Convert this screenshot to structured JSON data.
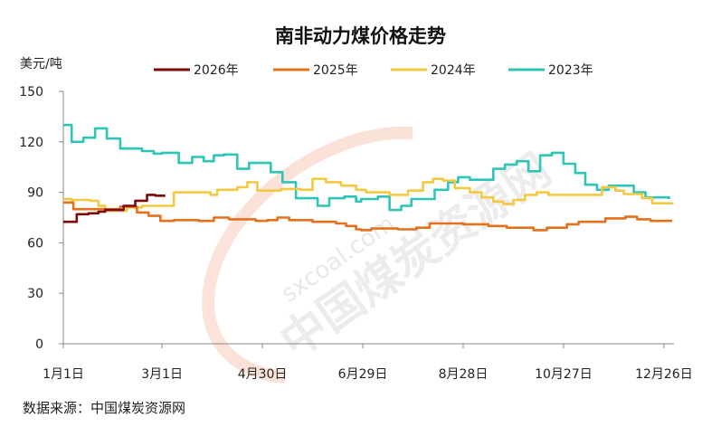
{
  "chart_data": {
    "type": "line",
    "title": "南非动力煤价格走势",
    "ylabel": "美元/吨",
    "ylim": [
      0,
      150
    ],
    "yticks": [
      0,
      30,
      60,
      90,
      120,
      150
    ],
    "xticks": [
      {
        "date": "01-01",
        "label": "1月1日"
      },
      {
        "date": "03-01",
        "label": "3月1日"
      },
      {
        "date": "04-30",
        "label": "4月30日"
      },
      {
        "date": "06-29",
        "label": "6月29日"
      },
      {
        "date": "08-28",
        "label": "8月28日"
      },
      {
        "date": "10-27",
        "label": "10月27日"
      },
      {
        "date": "12-26",
        "label": "12月26日"
      }
    ],
    "grid": false,
    "legend": "top",
    "step": true,
    "series": [
      {
        "name": "2026年",
        "color": "#7b0a0a",
        "points": [
          [
            "01-01",
            72.5
          ],
          [
            "01-09",
            77
          ],
          [
            "01-16",
            77.5
          ],
          [
            "01-22",
            78.5
          ],
          [
            "01-26",
            79.5
          ],
          [
            "02-06",
            82
          ],
          [
            "02-13",
            85
          ],
          [
            "02-20",
            88.5
          ],
          [
            "02-25",
            88
          ],
          [
            "03-03",
            88
          ]
        ]
      },
      {
        "name": "2025年",
        "color": "#e5711d",
        "points": [
          [
            "01-01",
            84
          ],
          [
            "01-07",
            80
          ],
          [
            "02-04",
            81.5
          ],
          [
            "02-14",
            78
          ],
          [
            "02-21",
            76
          ],
          [
            "02-28",
            73
          ],
          [
            "03-08",
            73.5
          ],
          [
            "03-23",
            73
          ],
          [
            "04-01",
            75
          ],
          [
            "04-10",
            74
          ],
          [
            "04-26",
            73
          ],
          [
            "05-03",
            73.5
          ],
          [
            "05-09",
            75
          ],
          [
            "05-16",
            73.5
          ],
          [
            "05-30",
            72.5
          ],
          [
            "06-13",
            71.5
          ],
          [
            "06-19",
            70
          ],
          [
            "06-25",
            68
          ],
          [
            "06-28",
            67.5
          ],
          [
            "07-04",
            68.5
          ],
          [
            "07-20",
            68
          ],
          [
            "07-31",
            69
          ],
          [
            "08-08",
            71.5
          ],
          [
            "08-21",
            71.5
          ],
          [
            "08-28",
            71
          ],
          [
            "09-12",
            70
          ],
          [
            "09-23",
            69
          ],
          [
            "10-09",
            67.5
          ],
          [
            "10-17",
            69
          ],
          [
            "10-29",
            71
          ],
          [
            "11-05",
            72.5
          ],
          [
            "11-21",
            74.5
          ],
          [
            "12-03",
            75.5
          ],
          [
            "12-10",
            74
          ],
          [
            "12-18",
            73
          ],
          [
            "12-31",
            73
          ]
        ]
      },
      {
        "name": "2024年",
        "color": "#f5c842",
        "points": [
          [
            "01-01",
            86
          ],
          [
            "01-06",
            85.5
          ],
          [
            "01-17",
            85
          ],
          [
            "01-22",
            82
          ],
          [
            "01-26",
            79
          ],
          [
            "02-08",
            81
          ],
          [
            "02-17",
            82
          ],
          [
            "03-08",
            90
          ],
          [
            "03-30",
            88.5
          ],
          [
            "04-03",
            91.5
          ],
          [
            "04-15",
            93
          ],
          [
            "04-21",
            96
          ],
          [
            "04-27",
            91
          ],
          [
            "05-11",
            92
          ],
          [
            "05-23",
            91.5
          ],
          [
            "05-30",
            98
          ],
          [
            "06-07",
            96
          ],
          [
            "06-16",
            94
          ],
          [
            "06-25",
            91.5
          ],
          [
            "07-01",
            90
          ],
          [
            "07-15",
            88.5
          ],
          [
            "07-26",
            91
          ],
          [
            "08-04",
            96
          ],
          [
            "08-10",
            98
          ],
          [
            "08-16",
            97
          ],
          [
            "08-23",
            92.5
          ],
          [
            "09-01",
            90
          ],
          [
            "09-08",
            87
          ],
          [
            "09-15",
            84.5
          ],
          [
            "09-21",
            83
          ],
          [
            "09-27",
            85.5
          ],
          [
            "10-04",
            88.5
          ],
          [
            "10-11",
            90
          ],
          [
            "10-18",
            88.5
          ],
          [
            "11-19",
            93
          ],
          [
            "11-27",
            91
          ],
          [
            "12-02",
            89
          ],
          [
            "12-13",
            86.5
          ],
          [
            "12-19",
            83.5
          ],
          [
            "12-31",
            84
          ]
        ]
      },
      {
        "name": "2023年",
        "color": "#2ec4b6",
        "points": [
          [
            "01-01",
            130
          ],
          [
            "01-06",
            120
          ],
          [
            "01-13",
            122.5
          ],
          [
            "01-20",
            128
          ],
          [
            "01-27",
            122
          ],
          [
            "02-04",
            116
          ],
          [
            "02-17",
            114.5
          ],
          [
            "02-24",
            113
          ],
          [
            "03-01",
            113.5
          ],
          [
            "03-11",
            107.5
          ],
          [
            "03-19",
            111
          ],
          [
            "03-26",
            108.5
          ],
          [
            "04-01",
            112
          ],
          [
            "04-07",
            112.5
          ],
          [
            "04-15",
            104
          ],
          [
            "04-22",
            107.5
          ],
          [
            "05-05",
            102
          ],
          [
            "05-12",
            96
          ],
          [
            "05-20",
            86.5
          ],
          [
            "06-02",
            82
          ],
          [
            "06-09",
            86.5
          ],
          [
            "06-18",
            87.5
          ],
          [
            "06-25",
            84.5
          ],
          [
            "06-28",
            86
          ],
          [
            "07-08",
            87.5
          ],
          [
            "07-15",
            79.5
          ],
          [
            "07-22",
            82
          ],
          [
            "07-28",
            86
          ],
          [
            "08-11",
            91.5
          ],
          [
            "08-19",
            96
          ],
          [
            "08-25",
            99
          ],
          [
            "09-01",
            97.5
          ],
          [
            "09-15",
            104
          ],
          [
            "09-22",
            106.5
          ],
          [
            "09-29",
            108.5
          ],
          [
            "10-06",
            102.5
          ],
          [
            "10-13",
            112
          ],
          [
            "10-20",
            113.5
          ],
          [
            "10-27",
            107
          ],
          [
            "11-03",
            101.5
          ],
          [
            "11-09",
            94.5
          ],
          [
            "11-16",
            91.5
          ],
          [
            "11-23",
            94
          ],
          [
            "12-08",
            90
          ],
          [
            "12-15",
            87
          ],
          [
            "12-29",
            86
          ]
        ]
      }
    ]
  },
  "watermark": {
    "url_text": "sxcoal.com",
    "name_text": "中国煤炭资源网"
  },
  "source": "数据来源：中国煤炭资源网"
}
